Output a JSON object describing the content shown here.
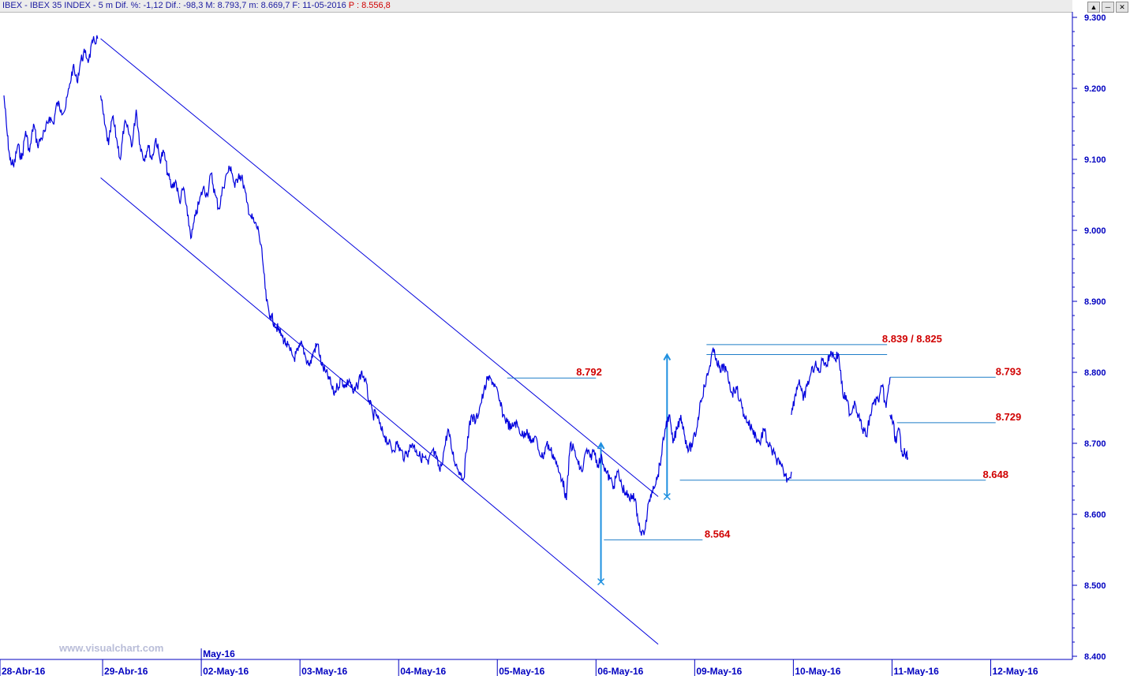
{
  "window": {
    "header_info": "IBEX - IBEX 35 INDEX - 5 m  Dif. %: -1,12  Dif.: -98,3  M: 8.793,7  m: 8.669,7  F: 11-05-2016",
    "header_price": "P : 8.556,8",
    "buttons": [
      "▲",
      "─",
      "✕"
    ]
  },
  "watermark": "www.visualchart.com",
  "colors": {
    "price_line": "#0000dd",
    "channel": "#0000dd",
    "level_lines": "#1e7ec8",
    "level_labels": "#d00000",
    "axis": "#0000c0",
    "arrows": "#1e90e0"
  },
  "chart_data": {
    "type": "line",
    "title": "IBEX - IBEX 35 INDEX - 5 m",
    "y_axis": {
      "ticks": [
        8400,
        8500,
        8600,
        8700,
        8800,
        8900,
        9000,
        9100,
        9200,
        9300
      ],
      "tick_labels": [
        "8.400",
        "8.500",
        "8.600",
        "8.700",
        "8.800",
        "8.900",
        "9.000",
        "9.100",
        "9.200",
        "9.300"
      ],
      "ylim": [
        8400,
        9300
      ],
      "side": "right"
    },
    "x_axis": {
      "tick_labels": [
        "28-Abr-16",
        "29-Abr-16",
        "02-May-16",
        "03-May-16",
        "04-May-16",
        "05-May-16",
        "06-May-16",
        "09-May-16",
        "10-May-16",
        "11-May-16",
        "12-May-16"
      ],
      "month_marker": "May-16",
      "xlim": [
        0,
        10.5
      ]
    },
    "series": [
      {
        "segments": [
          {
            "x": [
              0.0,
              0.03,
              0.06,
              0.1,
              0.14,
              0.18,
              0.22,
              0.26,
              0.3,
              0.34,
              0.38,
              0.42,
              0.46,
              0.5,
              0.54,
              0.58,
              0.62,
              0.66,
              0.7,
              0.74,
              0.78,
              0.82,
              0.86,
              0.9,
              0.95
            ],
            "y": [
              9190,
              9140,
              9100,
              9090,
              9120,
              9100,
              9140,
              9110,
              9150,
              9120,
              9130,
              9140,
              9160,
              9150,
              9180,
              9170,
              9170,
              9200,
              9230,
              9210,
              9240,
              9250,
              9240,
              9265,
              9270
            ]
          },
          {
            "x": [
              0.98,
              1.02,
              1.06,
              1.1,
              1.14,
              1.18,
              1.22,
              1.26,
              1.3,
              1.34,
              1.38,
              1.42,
              1.46,
              1.5,
              1.54,
              1.58,
              1.62,
              1.66,
              1.7,
              1.74,
              1.78,
              1.82,
              1.86,
              1.9,
              1.94,
              1.98,
              2.02,
              2.06,
              2.1,
              2.14,
              2.18,
              2.22,
              2.26,
              2.3,
              2.34,
              2.38,
              2.42,
              2.46,
              2.5,
              2.54,
              2.58,
              2.62,
              2.66,
              2.7,
              2.74,
              2.78,
              2.82,
              2.86,
              2.9,
              2.94
            ],
            "y": [
              9190,
              9150,
              9120,
              9160,
              9130,
              9100,
              9150,
              9140,
              9120,
              9170,
              9120,
              9100,
              9120,
              9100,
              9130,
              9100,
              9110,
              9080,
              9060,
              9070,
              9040,
              9060,
              9020,
              8990,
              9020,
              9040,
              9060,
              9050,
              9080,
              9050,
              9030,
              9060,
              9080,
              9090,
              9060,
              9080,
              9070,
              9040,
              9020,
              9010,
              9000,
              8960,
              8900,
              8880,
              8870,
              8860,
              8850,
              8840,
              8830,
              8820
            ]
          },
          {
            "x": [
              2.94,
              2.98,
              3.02,
              3.06,
              3.1,
              3.14,
              3.18,
              3.22,
              3.26,
              3.3,
              3.34,
              3.38,
              3.42,
              3.46,
              3.5,
              3.54,
              3.58,
              3.62,
              3.66,
              3.7,
              3.74,
              3.78,
              3.82,
              3.86,
              3.9,
              3.94
            ],
            "y": [
              8820,
              8830,
              8840,
              8820,
              8810,
              8830,
              8840,
              8810,
              8800,
              8790,
              8770,
              8780,
              8790,
              8780,
              8790,
              8770,
              8780,
              8800,
              8790,
              8760,
              8740,
              8740,
              8720,
              8710,
              8700,
              8690
            ]
          },
          {
            "x": [
              3.94,
              3.98,
              4.02,
              4.06,
              4.1,
              4.14,
              4.18,
              4.22,
              4.26,
              4.3,
              4.34,
              4.38,
              4.42,
              4.46,
              4.5,
              4.54,
              4.58,
              4.62,
              4.66,
              4.7,
              4.74,
              4.78,
              4.82,
              4.86,
              4.9,
              4.94,
              4.98
            ],
            "y": [
              8690,
              8700,
              8690,
              8680,
              8690,
              8700,
              8690,
              8680,
              8680,
              8670,
              8690,
              8680,
              8660,
              8690,
              8720,
              8690,
              8670,
              8660,
              8650,
              8710,
              8740,
              8730,
              8750,
              8770,
              8790,
              8790,
              8780
            ]
          },
          {
            "x": [
              4.98,
              5.02,
              5.06,
              5.1,
              5.14,
              5.18,
              5.22,
              5.26,
              5.3,
              5.34,
              5.38,
              5.42,
              5.46,
              5.5,
              5.54,
              5.58,
              5.62,
              5.66,
              5.7,
              5.74,
              5.78,
              5.82,
              5.86,
              5.9,
              5.94
            ],
            "y": [
              8780,
              8760,
              8740,
              8730,
              8720,
              8730,
              8720,
              8710,
              8720,
              8700,
              8710,
              8690,
              8680,
              8700,
              8690,
              8680,
              8660,
              8650,
              8620,
              8700,
              8690,
              8670,
              8660,
              8690,
              8680
            ]
          },
          {
            "x": [
              5.94,
              5.98,
              6.02,
              6.06,
              6.1,
              6.14,
              6.18,
              6.22,
              6.26,
              6.3,
              6.34,
              6.38,
              6.42,
              6.46,
              6.5,
              6.54,
              6.58,
              6.62,
              6.66,
              6.7,
              6.74,
              6.78,
              6.82,
              6.86,
              6.9,
              6.94
            ],
            "y": [
              8680,
              8690,
              8670,
              8680,
              8660,
              8650,
              8640,
              8660,
              8640,
              8630,
              8620,
              8630,
              8600,
              8570,
              8580,
              8620,
              8640,
              8650,
              8680,
              8720,
              8740,
              8700,
              8720,
              8740,
              8710,
              8690
            ]
          },
          {
            "x": [
              6.94,
              6.98,
              7.02,
              7.06,
              7.1,
              7.14,
              7.18,
              7.22,
              7.26,
              7.3,
              7.34,
              7.38,
              7.42,
              7.46,
              7.5,
              7.54,
              7.58,
              7.62,
              7.66,
              7.7,
              7.74,
              7.78,
              7.82,
              7.86,
              7.9,
              7.94,
              7.98
            ],
            "y": [
              8690,
              8700,
              8720,
              8760,
              8780,
              8800,
              8830,
              8820,
              8800,
              8810,
              8790,
              8770,
              8780,
              8760,
              8740,
              8730,
              8720,
              8710,
              8700,
              8720,
              8700,
              8690,
              8680,
              8670,
              8660,
              8650,
              8660
            ]
          },
          {
            "x": [
              7.98,
              8.02,
              8.06,
              8.1,
              8.14,
              8.18,
              8.22,
              8.26,
              8.3,
              8.34,
              8.38,
              8.42,
              8.46,
              8.5,
              8.54,
              8.58,
              8.62,
              8.66,
              8.7,
              8.74,
              8.78,
              8.82,
              8.86,
              8.9,
              8.94,
              8.98
            ],
            "y": [
              8740,
              8770,
              8790,
              8760,
              8780,
              8800,
              8810,
              8800,
              8820,
              8810,
              8830,
              8820,
              8825,
              8770,
              8760,
              8740,
              8760,
              8740,
              8720,
              8710,
              8740,
              8760,
              8760,
              8780,
              8750,
              8793
            ]
          },
          {
            "x": [
              8.98,
              9.01,
              9.04,
              9.07,
              9.1,
              9.13,
              9.16
            ],
            "y": [
              8740,
              8729,
              8700,
              8720,
              8690,
              8685,
              8680
            ]
          }
        ]
      }
    ],
    "channel_lines": [
      {
        "x": [
          0.98,
          6.63
        ],
        "y": [
          9270,
          8625
        ]
      },
      {
        "x": [
          0.98,
          6.63
        ],
        "y": [
          9074,
          8417
        ]
      }
    ],
    "levels": [
      {
        "label": "8.792",
        "value": 8792,
        "x_start": 5.1,
        "x_end": 6.0,
        "label_x": 5.8
      },
      {
        "label": "8.839 / 8.825",
        "value_top": 8839,
        "value_bottom": 8825,
        "x_start": 7.12,
        "x_end": 8.95,
        "label_x": 8.9
      },
      {
        "label": "8.793",
        "value": 8793,
        "x_start": 8.98,
        "x_end": 10.05,
        "label_x": 10.05
      },
      {
        "label": "8.729",
        "value": 8729,
        "x_start": 9.05,
        "x_end": 10.05,
        "label_x": 10.05
      },
      {
        "label": "8.648",
        "value": 8648,
        "x_start": 6.85,
        "x_end": 9.95,
        "label_x": 9.92
      },
      {
        "label": "8.564",
        "value": 8564,
        "x_start": 6.08,
        "x_end": 7.08,
        "label_x": 7.1
      }
    ],
    "arrows": [
      {
        "x": 6.05,
        "y_from": 8505,
        "y_to": 8700
      },
      {
        "x": 6.72,
        "y_from": 8625,
        "y_to": 8825
      }
    ]
  }
}
